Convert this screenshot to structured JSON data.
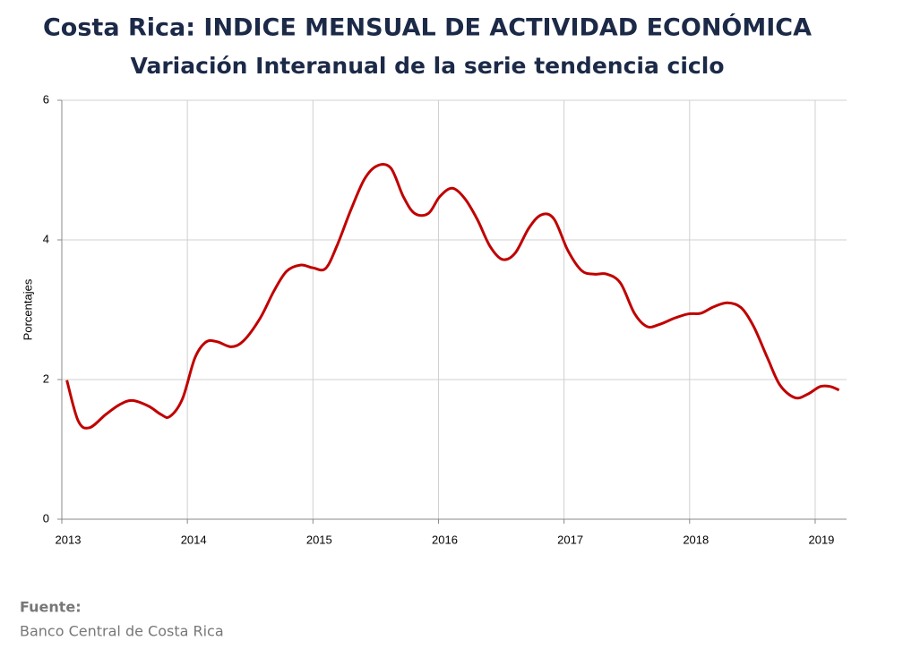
{
  "chart_data": {
    "type": "line",
    "title": "Costa Rica: INDICE MENSUAL DE ACTIVIDAD ECONÓMICA",
    "subtitle": "Variación Interanual de la serie tendencia ciclo",
    "y_label": "Porcentajes",
    "source_label": "Fuente:",
    "source": "Banco Central de Costa Rica",
    "x": [
      2013.04,
      2013.13,
      2013.22,
      2013.35,
      2013.46,
      2013.56,
      2013.69,
      2013.79,
      2013.86,
      2013.96,
      2014.06,
      2014.15,
      2014.24,
      2014.35,
      2014.45,
      2014.58,
      2014.69,
      2014.79,
      2014.9,
      2015.0,
      2015.1,
      2015.19,
      2015.3,
      2015.41,
      2015.51,
      2015.62,
      2015.72,
      2015.81,
      2015.92,
      2016.01,
      2016.11,
      2016.21,
      2016.31,
      2016.41,
      2016.51,
      2016.61,
      2016.72,
      2016.82,
      2016.92,
      2017.03,
      2017.14,
      2017.24,
      2017.34,
      2017.45,
      2017.56,
      2017.66,
      2017.76,
      2017.88,
      2017.99,
      2018.09,
      2018.19,
      2018.3,
      2018.41,
      2018.51,
      2018.62,
      2018.72,
      2018.84,
      2018.94,
      2019.04,
      2019.12,
      2019.19
    ],
    "series": [
      {
        "name": "Variación interanual",
        "color": "#c00000",
        "values": [
          1.99,
          1.41,
          1.31,
          1.5,
          1.64,
          1.7,
          1.62,
          1.5,
          1.47,
          1.72,
          2.31,
          2.54,
          2.54,
          2.47,
          2.56,
          2.88,
          3.27,
          3.55,
          3.64,
          3.6,
          3.59,
          3.91,
          4.42,
          4.87,
          5.06,
          5.03,
          4.62,
          4.38,
          4.38,
          4.62,
          4.74,
          4.59,
          4.29,
          3.91,
          3.72,
          3.81,
          4.17,
          4.36,
          4.3,
          3.85,
          3.56,
          3.51,
          3.51,
          3.38,
          2.95,
          2.76,
          2.79,
          2.88,
          2.94,
          2.95,
          3.04,
          3.1,
          3.03,
          2.76,
          2.31,
          1.92,
          1.74,
          1.79,
          1.9,
          1.9,
          1.85
        ]
      }
    ],
    "xlim": [
      2013,
      2019.25
    ],
    "xticks": [
      2013,
      2014,
      2015,
      2016,
      2017,
      2018,
      2019
    ],
    "ylim": [
      0,
      6
    ],
    "yticks": [
      0,
      2,
      4,
      6
    ],
    "grid": true
  }
}
